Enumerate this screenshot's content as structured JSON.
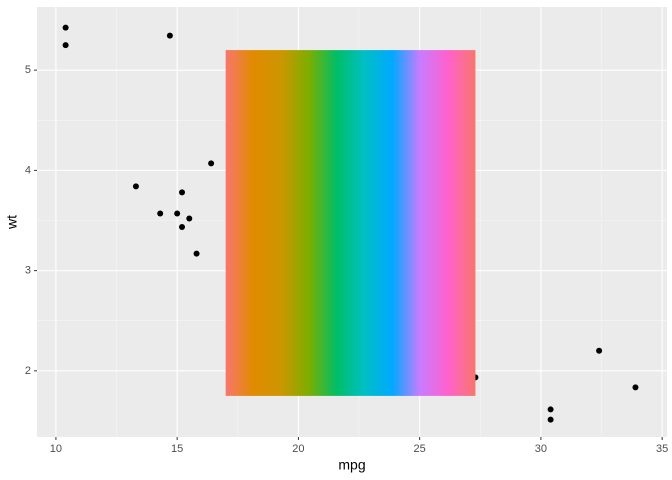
{
  "chart_data": {
    "type": "scatter",
    "x_label": "mpg",
    "y_label": "wt",
    "x": [
      10.4,
      10.4,
      14.7,
      16.4,
      13.3,
      15.2,
      14.3,
      15.0,
      15.5,
      15.2,
      15.8,
      27.3,
      30.4,
      30.4,
      32.4,
      33.9
    ],
    "values": [
      5.424,
      5.25,
      5.345,
      4.07,
      3.84,
      3.78,
      3.57,
      3.57,
      3.52,
      3.435,
      3.17,
      1.935,
      1.615,
      1.513,
      2.2,
      1.835
    ],
    "color": "#000000",
    "xlim": [
      9.22,
      35.2
    ],
    "ylim": [
      1.34,
      5.63
    ],
    "xticks": [
      10,
      15,
      20,
      25,
      30,
      35
    ],
    "yticks": [
      2,
      3,
      4,
      5
    ],
    "grid": true,
    "raster": {
      "xmin": 17,
      "xmax": 27.3,
      "ymin": 1.75,
      "ymax": 5.2,
      "colors": [
        "#F8766D",
        "#E08B00",
        "#CD9600",
        "#7CAE00",
        "#00BE67",
        "#00BFC4",
        "#00A9FF",
        "#C77CFF",
        "#FF61CC",
        "#F8766D"
      ]
    }
  }
}
